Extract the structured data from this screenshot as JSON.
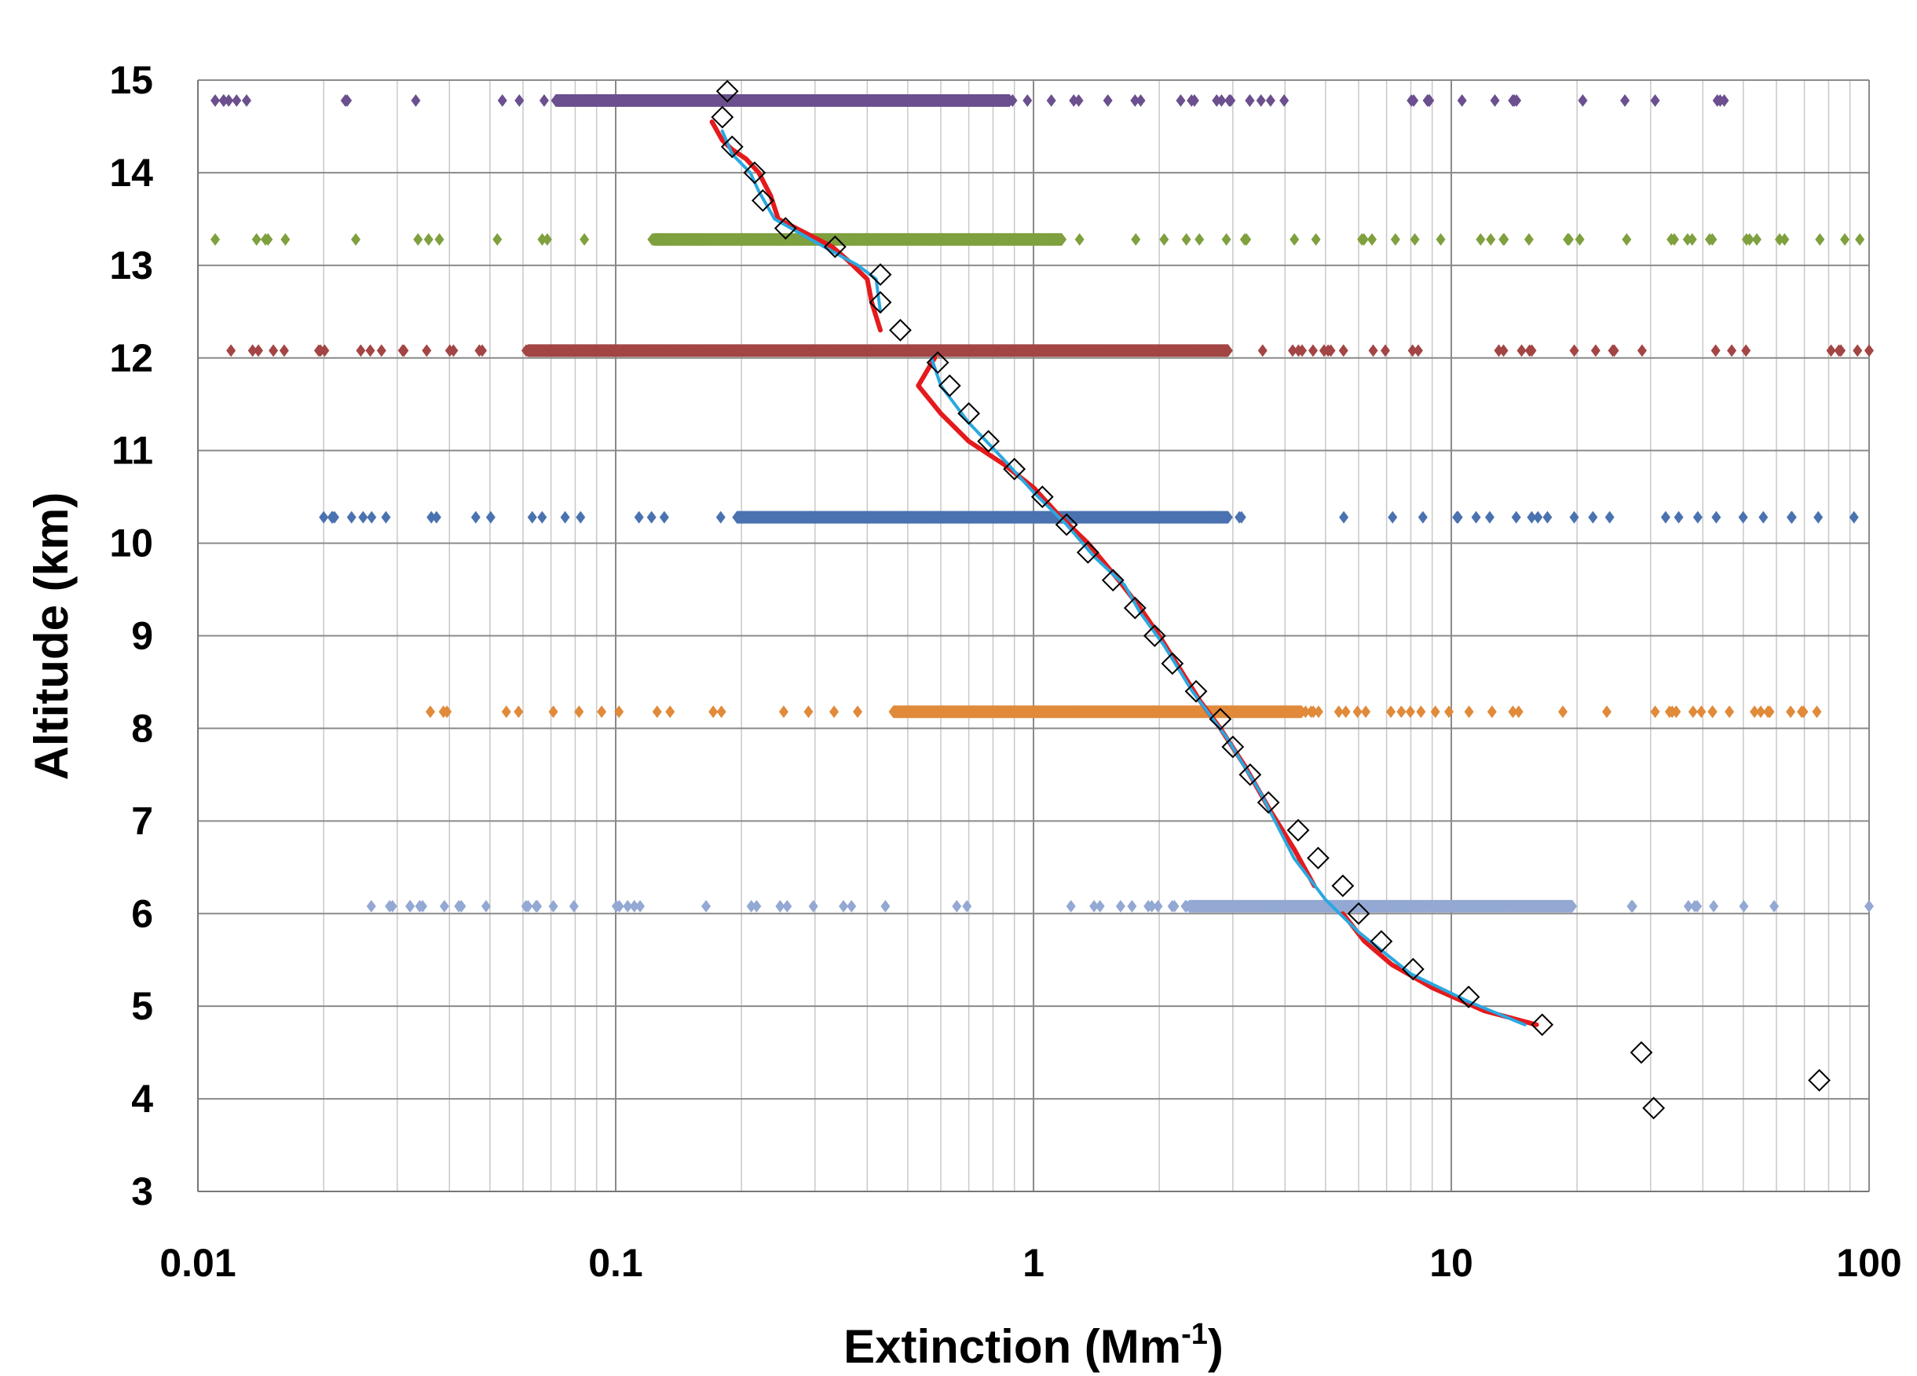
{
  "chart_data": {
    "type": "scatter",
    "title": "",
    "xlabel": "Extinction (Mm",
    "xlabel_sup": "-1",
    "xlabel_close": ")",
    "ylabel": "Altitude (km)",
    "x_scale": "log",
    "xlim": [
      0.01,
      100
    ],
    "ylim": [
      3,
      15
    ],
    "x_ticks": [
      0.01,
      0.1,
      1,
      10,
      100
    ],
    "x_tick_labels": [
      "0.01",
      "0.1",
      "1",
      "10",
      "100"
    ],
    "y_ticks": [
      3,
      4,
      5,
      6,
      7,
      8,
      9,
      10,
      11,
      12,
      13,
      14,
      15
    ],
    "y_tick_labels": [
      "3",
      "4",
      "5",
      "6",
      "7",
      "8",
      "9",
      "10",
      "11",
      "12",
      "13",
      "14",
      "15"
    ],
    "grid": "major and minor (log x)",
    "legend": "none",
    "point_bands": [
      {
        "altitude": 14.78,
        "color": "#6b4f8e",
        "dense_range": [
          0.07,
          0.9
        ],
        "sparse_range": [
          0.011,
          45
        ]
      },
      {
        "altitude": 13.28,
        "color": "#7fa03e",
        "dense_range": [
          0.12,
          1.2
        ],
        "sparse_range": [
          0.011,
          95
        ]
      },
      {
        "altitude": 12.08,
        "color": "#a34545",
        "dense_range": [
          0.06,
          3.0
        ],
        "sparse_range": [
          0.012,
          100
        ]
      },
      {
        "altitude": 10.28,
        "color": "#4a72b0",
        "dense_range": [
          0.19,
          3.0
        ],
        "sparse_range": [
          0.02,
          92
        ]
      },
      {
        "altitude": 8.18,
        "color": "#e08a3a",
        "dense_range": [
          0.45,
          4.5
        ],
        "sparse_range": [
          0.036,
          75
        ]
      },
      {
        "altitude": 6.08,
        "color": "#93a8d3",
        "dense_range": [
          2.3,
          20
        ],
        "sparse_range": [
          0.026,
          100
        ]
      }
    ],
    "series": [
      {
        "name": "",
        "type": "line",
        "color": "#e41a1c",
        "points": [
          [
            0.17,
            14.55
          ],
          [
            0.18,
            14.35
          ],
          [
            0.19,
            14.25
          ],
          [
            0.205,
            14.15
          ],
          [
            0.22,
            14.0
          ],
          [
            0.235,
            13.75
          ],
          [
            0.245,
            13.5
          ],
          [
            0.33,
            13.2
          ],
          [
            0.36,
            13.05
          ],
          [
            0.4,
            12.85
          ],
          [
            0.41,
            12.6
          ],
          [
            0.43,
            12.3
          ],
          null,
          [
            0.58,
            12.0
          ],
          [
            0.53,
            11.7
          ],
          [
            0.6,
            11.4
          ],
          [
            0.7,
            11.1
          ],
          [
            0.85,
            10.85
          ],
          [
            1.0,
            10.6
          ],
          [
            1.15,
            10.3
          ],
          [
            1.35,
            10.0
          ],
          [
            1.6,
            9.6
          ],
          [
            1.8,
            9.3
          ],
          [
            2.0,
            9.0
          ],
          [
            2.2,
            8.7
          ],
          [
            2.5,
            8.3
          ],
          [
            2.8,
            8.0
          ],
          [
            3.2,
            7.6
          ],
          [
            3.7,
            7.1
          ],
          [
            4.2,
            6.7
          ],
          [
            4.7,
            6.3
          ],
          null,
          [
            5.5,
            6.0
          ],
          [
            6.2,
            5.7
          ],
          [
            7.2,
            5.45
          ],
          [
            9.0,
            5.2
          ],
          [
            12.0,
            4.95
          ],
          [
            16.0,
            4.8
          ]
        ]
      },
      {
        "name": "",
        "type": "line",
        "color": "#29a8e0",
        "points": [
          [
            0.18,
            14.45
          ],
          [
            0.19,
            14.2
          ],
          [
            0.21,
            14.0
          ],
          [
            0.22,
            13.8
          ],
          [
            0.24,
            13.5
          ],
          [
            0.33,
            13.15
          ],
          [
            0.38,
            13.0
          ],
          [
            0.42,
            12.85
          ],
          [
            0.43,
            12.5
          ],
          null,
          [
            0.57,
            12.0
          ],
          [
            0.6,
            11.7
          ],
          [
            0.7,
            11.3
          ],
          [
            0.85,
            10.9
          ],
          [
            1.0,
            10.55
          ],
          [
            1.2,
            10.2
          ],
          [
            1.4,
            9.85
          ],
          [
            1.65,
            9.55
          ],
          [
            1.8,
            9.25
          ],
          [
            2.05,
            8.9
          ],
          [
            2.4,
            8.4
          ],
          [
            2.9,
            7.9
          ],
          [
            3.5,
            7.3
          ],
          [
            4.2,
            6.6
          ],
          [
            5.0,
            6.15
          ],
          [
            6.0,
            5.8
          ],
          [
            8.0,
            5.35
          ],
          [
            11.0,
            5.05
          ],
          [
            15.0,
            4.8
          ]
        ]
      },
      {
        "name": "",
        "type": "markers",
        "marker": "open-diamond",
        "color": "#000000",
        "points": [
          [
            0.185,
            14.88
          ],
          [
            0.18,
            14.6
          ],
          [
            0.19,
            14.28
          ],
          [
            0.215,
            14.0
          ],
          [
            0.225,
            13.7
          ],
          [
            0.255,
            13.4
          ],
          [
            0.335,
            13.2
          ],
          [
            0.43,
            12.9
          ],
          [
            0.43,
            12.6
          ],
          [
            0.48,
            12.3
          ],
          [
            0.59,
            11.95
          ],
          [
            0.63,
            11.7
          ],
          [
            0.7,
            11.4
          ],
          [
            0.78,
            11.1
          ],
          [
            0.9,
            10.8
          ],
          [
            1.05,
            10.5
          ],
          [
            1.2,
            10.2
          ],
          [
            1.35,
            9.9
          ],
          [
            1.55,
            9.6
          ],
          [
            1.75,
            9.3
          ],
          [
            1.95,
            9.0
          ],
          [
            2.15,
            8.7
          ],
          [
            2.45,
            8.4
          ],
          [
            2.8,
            8.1
          ],
          [
            3.0,
            7.8
          ],
          [
            3.3,
            7.5
          ],
          [
            3.65,
            7.2
          ],
          [
            4.3,
            6.9
          ],
          [
            4.8,
            6.6
          ],
          [
            5.5,
            6.3
          ],
          [
            6.0,
            6.0
          ],
          [
            6.8,
            5.7
          ],
          [
            8.1,
            5.4
          ],
          [
            11.0,
            5.1
          ],
          [
            16.5,
            4.8
          ],
          [
            28.5,
            4.5
          ],
          [
            76.0,
            4.2
          ],
          [
            30.5,
            3.9
          ]
        ]
      }
    ]
  }
}
